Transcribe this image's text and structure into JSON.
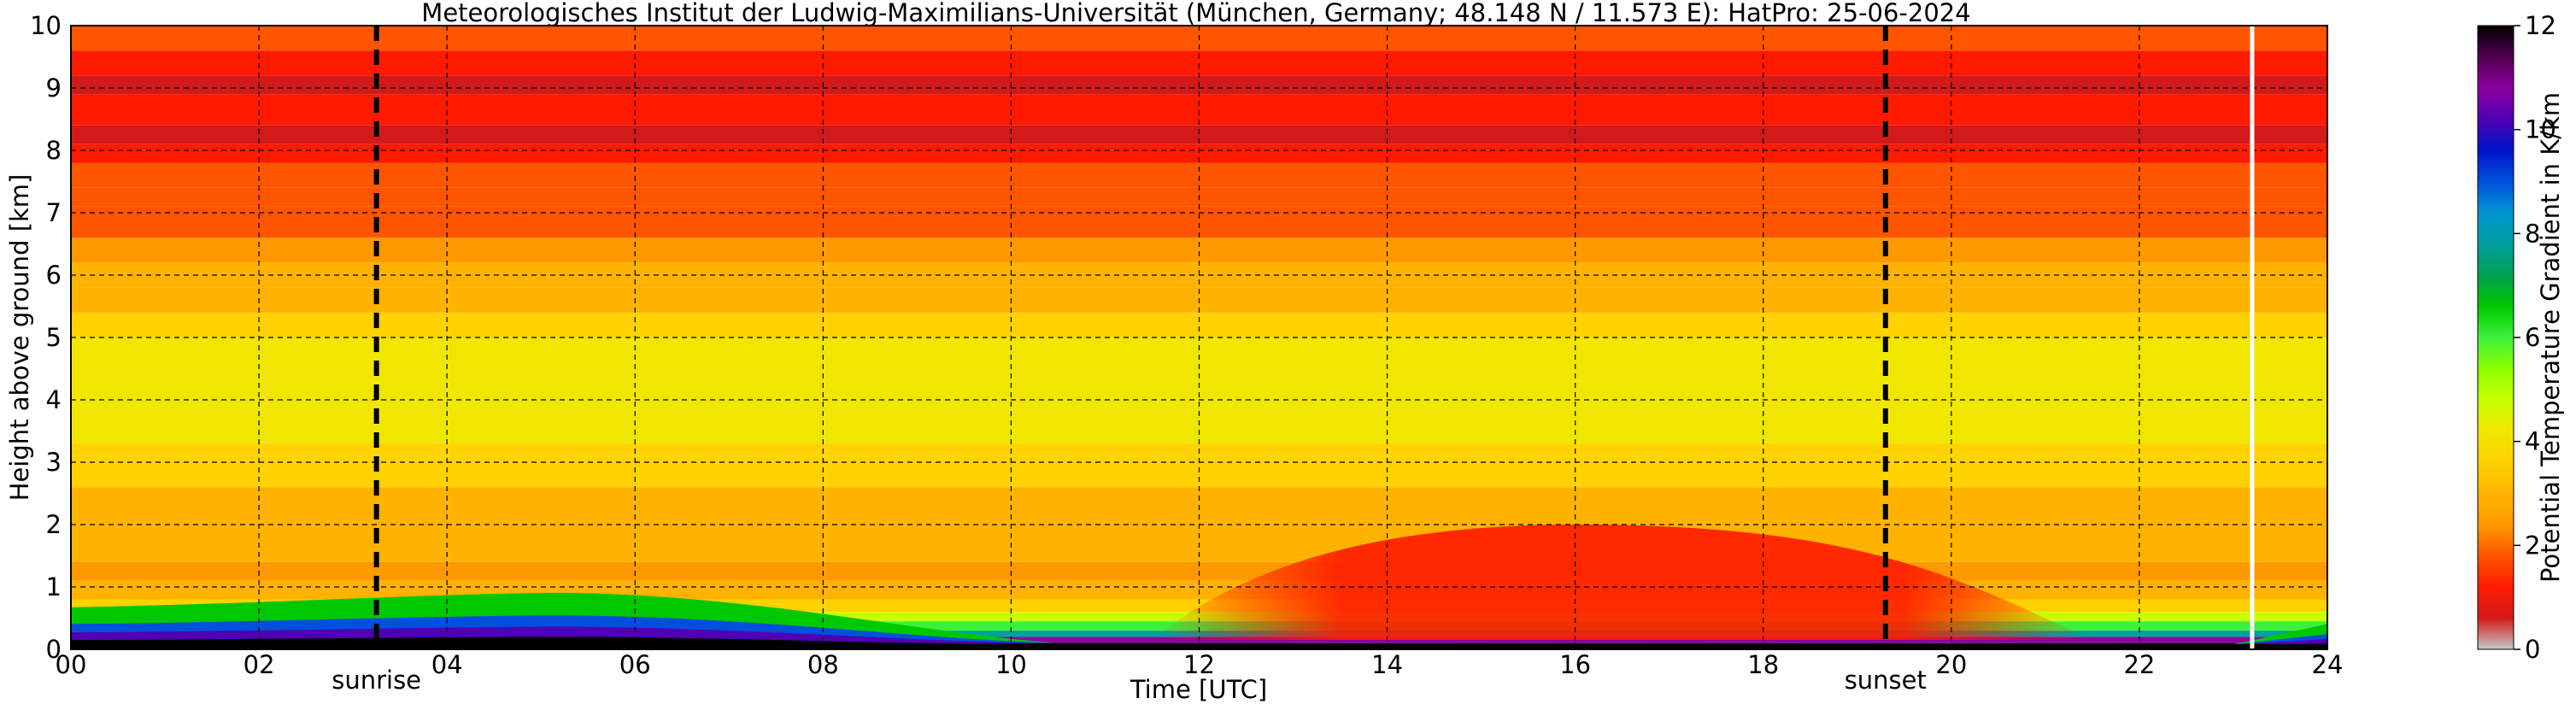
{
  "chart_data": {
    "type": "heatmap",
    "title": "Meteorologisches Institut der Ludwig-Maximilians-Universität (München, Germany; 48.148 N / 11.573 E):    HatPro: 25-06-2024",
    "xlabel": "Time [UTC]",
    "ylabel": "Height above ground [km]",
    "xlim": [
      0,
      24
    ],
    "ylim": [
      0,
      10
    ],
    "x_ticks": [
      "00",
      "02",
      "04",
      "06",
      "08",
      "10",
      "12",
      "14",
      "16",
      "18",
      "20",
      "22",
      "24"
    ],
    "y_ticks": [
      "0",
      "1",
      "2",
      "3",
      "4",
      "5",
      "6",
      "7",
      "8",
      "9",
      "10"
    ],
    "grid": true,
    "colorbar": {
      "label": "Potential Temperature Gradient in K/km",
      "range": [
        0,
        12
      ],
      "ticks": [
        "0",
        "2",
        "4",
        "6",
        "8",
        "10",
        "12"
      ],
      "colors": [
        "#c8c8c8",
        "#d21a1a",
        "#ff1a00",
        "#ff5500",
        "#ff9900",
        "#ffb300",
        "#ffd200",
        "#f0e600",
        "#c8ff00",
        "#8cff00",
        "#3cf03c",
        "#00c800",
        "#00a050",
        "#00a0a0",
        "#0096d2",
        "#0050dc",
        "#0014c8",
        "#5000b4",
        "#8c00a0",
        "#500050",
        "#000000"
      ]
    },
    "annotations": [
      {
        "label": "sunrise",
        "x": 3.25
      },
      {
        "label": "sunset",
        "x": 19.3
      }
    ],
    "gap_line_x": 23.2,
    "height_layers": [
      {
        "from": 0.0,
        "to": 0.1,
        "value": 12
      },
      {
        "from": 0.1,
        "to": 0.2,
        "value": 10.5
      },
      {
        "from": 0.2,
        "to": 0.3,
        "value": 8
      },
      {
        "from": 0.3,
        "to": 0.45,
        "value": 6
      },
      {
        "from": 0.45,
        "to": 0.6,
        "value": 4.5
      },
      {
        "from": 0.6,
        "to": 0.8,
        "value": 3.4
      },
      {
        "from": 0.8,
        "to": 1.1,
        "value": 2.8
      },
      {
        "from": 1.1,
        "to": 1.4,
        "value": 2.3
      },
      {
        "from": 1.4,
        "to": 2.0,
        "value": 2.8
      },
      {
        "from": 2.0,
        "to": 2.6,
        "value": 3.1
      },
      {
        "from": 2.6,
        "to": 3.1,
        "value": 3.4
      },
      {
        "from": 3.1,
        "to": 3.3,
        "value": 3.8
      },
      {
        "from": 3.3,
        "to": 3.8,
        "value": 4.3
      },
      {
        "from": 3.8,
        "to": 4.0,
        "value": 4.0
      },
      {
        "from": 4.0,
        "to": 4.3,
        "value": 4.4
      },
      {
        "from": 4.3,
        "to": 5.0,
        "value": 3.9
      },
      {
        "from": 5.0,
        "to": 5.4,
        "value": 3.7
      },
      {
        "from": 5.4,
        "to": 5.8,
        "value": 3.3
      },
      {
        "from": 5.8,
        "to": 6.2,
        "value": 2.8
      },
      {
        "from": 6.2,
        "to": 6.6,
        "value": 2.4
      },
      {
        "from": 6.6,
        "to": 7.1,
        "value": 2.0
      },
      {
        "from": 7.1,
        "to": 7.4,
        "value": 1.8
      },
      {
        "from": 7.4,
        "to": 7.8,
        "value": 1.5
      },
      {
        "from": 7.8,
        "to": 8.1,
        "value": 0.9
      },
      {
        "from": 8.1,
        "to": 8.4,
        "value": 0.5
      },
      {
        "from": 8.4,
        "to": 8.9,
        "value": 0.9
      },
      {
        "from": 8.9,
        "to": 9.2,
        "value": 0.4
      },
      {
        "from": 9.2,
        "to": 9.6,
        "value": 0.9
      },
      {
        "from": 9.6,
        "to": 10.0,
        "value": 1.9
      }
    ],
    "features": [
      {
        "t0": 11.5,
        "t1": 21.5,
        "h0": 0.15,
        "h1": 2.0,
        "value": 0.8,
        "peak_t": 16.0
      },
      {
        "t0": 0.0,
        "t1": 10.5,
        "h0": 0.2,
        "h1": 0.9,
        "value": 6.5,
        "peak_t": 5.5
      }
    ]
  }
}
